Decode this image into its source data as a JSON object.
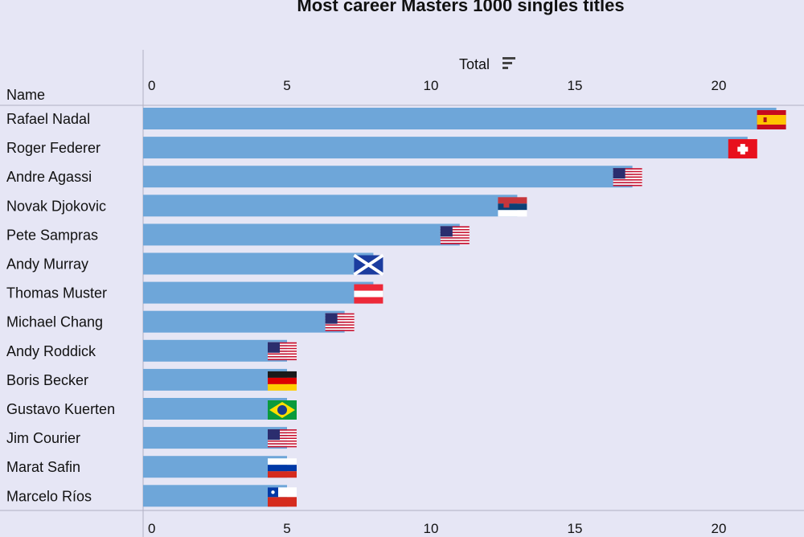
{
  "chart_data": {
    "type": "bar",
    "orientation": "horizontal",
    "title": "Most career Masters 1000 singles titles",
    "row_header": "Name",
    "value_header": "Total",
    "xlim": [
      0,
      23
    ],
    "ticks": [
      "0",
      "5",
      "10",
      "15",
      "20"
    ],
    "tick_values": [
      0,
      5,
      10,
      15,
      20
    ],
    "grid": false,
    "categories": [
      "Rafael Nadal",
      "Roger Federer",
      "Andre Agassi",
      "Novak Djokovic",
      "Pete Sampras",
      "Andy Murray",
      "Thomas Muster",
      "Michael Chang",
      "Andy Roddick",
      "Boris Becker",
      "Gustavo Kuerten",
      "Jim Courier",
      "Marat Safin",
      "Marcelo Ríos"
    ],
    "values": [
      22,
      21,
      17,
      13,
      11,
      8,
      8,
      7,
      5,
      5,
      5,
      5,
      5,
      5
    ],
    "flags": [
      "spain-flag-icon",
      "switzerland-flag-icon",
      "usa-flag-icon",
      "serbia-flag-icon",
      "usa-flag-icon",
      "scotland-flag-icon",
      "austria-flag-icon",
      "usa-flag-icon",
      "usa-flag-icon",
      "germany-flag-icon",
      "brazil-flag-icon",
      "usa-flag-icon",
      "russia-flag-icon",
      "chile-flag-icon"
    ],
    "bar_color": "#6ea6d9",
    "background_color": "#e6e6f5"
  }
}
